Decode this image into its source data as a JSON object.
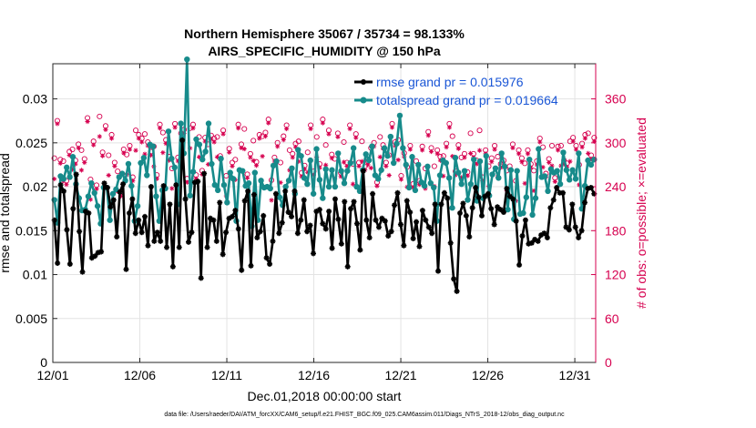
{
  "chart_data": {
    "type": "line",
    "title": [
      "Northern Hemisphere 35067 / 35734 = 98.133%",
      "AIRS_SPECIFIC_HUMIDITY @ 150 hPa"
    ],
    "xlabel": "Dec.01,2018 00:00:00 start",
    "ylabel_left": "rmse and totalspread",
    "ylabel_right": "# of obs: o=possible; ×=evaluated",
    "ylim_left": [
      0,
      0.034
    ],
    "ylim_right": [
      0,
      408
    ],
    "xlim": [
      0,
      31.2
    ],
    "x_ticks": [
      0,
      5,
      10,
      15,
      20,
      25,
      30
    ],
    "x_tick_labels": [
      "12/01",
      "12/06",
      "12/11",
      "12/16",
      "12/21",
      "12/26",
      "12/31"
    ],
    "y_ticks_left": [
      0,
      0.005,
      0.01,
      0.015,
      0.02,
      0.025,
      0.03
    ],
    "y_tick_labels_left": [
      "0",
      "0.005",
      "0.01",
      "0.015",
      "0.02",
      "0.025",
      "0.03"
    ],
    "y_ticks_right": [
      0,
      60,
      120,
      180,
      240,
      300,
      360
    ],
    "y_tick_labels_right": [
      "0",
      "60",
      "120",
      "180",
      "240",
      "300",
      "360"
    ],
    "grid": true,
    "legend_position": "top-right",
    "series": [
      {
        "name": "rmse grand pr = 0.015976",
        "color": "#000000",
        "axis": "left",
        "marker": "star",
        "values": [
          0.0162,
          0.0113,
          0.0202,
          0.0195,
          0.0151,
          0.0112,
          0.0175,
          0.0214,
          0.0149,
          0.0103,
          0.0172,
          0.017,
          0.0119,
          0.0121,
          0.0125,
          0.0126,
          0.0204,
          0.0199,
          0.0177,
          0.0185,
          0.0143,
          0.0194,
          0.0203,
          0.0106,
          0.017,
          0.0186,
          0.0147,
          0.0162,
          0.0148,
          0.0166,
          0.0133,
          0.02,
          0.0138,
          0.0148,
          0.0138,
          0.0201,
          0.0131,
          0.018,
          0.0109,
          0.0202,
          0.0131,
          0.0253,
          0.0186,
          0.0137,
          0.0148,
          0.0205,
          0.0206,
          0.0096,
          0.0215,
          0.0131,
          0.0164,
          0.0162,
          0.0138,
          0.0182,
          0.0123,
          0.0148,
          0.0164,
          0.0166,
          0.0173,
          0.0152,
          0.0105,
          0.0184,
          0.0195,
          0.011,
          0.0191,
          0.0142,
          0.0149,
          0.0167,
          0.0119,
          0.0112,
          0.0138,
          0.0192,
          0.0147,
          0.0159,
          0.0195,
          0.0171,
          0.0166,
          0.0195,
          0.0147,
          0.0162,
          0.0185,
          0.0149,
          0.0156,
          0.0124,
          0.0172,
          0.0174,
          0.0158,
          0.0152,
          0.0172,
          0.013,
          0.0186,
          0.0163,
          0.0135,
          0.0183,
          0.0109,
          0.0175,
          0.0183,
          0.0158,
          0.0128,
          0.0218,
          0.0162,
          0.0142,
          0.0192,
          0.0162,
          0.0154,
          0.0164,
          0.0161,
          0.0144,
          0.0149,
          0.0179,
          0.0193,
          0.0157,
          0.0133,
          0.0184,
          0.0171,
          0.0141,
          0.016,
          0.0132,
          0.0173,
          0.0162,
          0.0154,
          0.0147,
          0.018,
          0.0104,
          0.018,
          0.0193,
          0.0187,
          0.0136,
          0.0095,
          0.0081,
          0.017,
          0.0181,
          0.0167,
          0.0143,
          0.0176,
          0.0199,
          0.0188,
          0.0167,
          0.0189,
          0.0192,
          0.0175,
          0.0157,
          0.0177,
          0.0174,
          0.0171,
          0.0198,
          0.0189,
          0.0186,
          0.0161,
          0.0111,
          0.0144,
          0.0162,
          0.0135,
          0.0136,
          0.014,
          0.0138,
          0.0145,
          0.0147,
          0.0142,
          0.0176,
          0.0185,
          0.0199,
          0.0193,
          0.0193,
          0.0154,
          0.0151,
          0.018,
          0.0154,
          0.0142,
          0.015,
          0.0182,
          0.0198,
          0.0199,
          0.0192
        ]
      },
      {
        "name": "totalspread grand pr = 0.019664",
        "color": "#178b8b",
        "axis": "left",
        "marker": "dot",
        "values": [
          0.0185,
          0.0159,
          0.0212,
          0.0209,
          0.0222,
          0.0211,
          0.0234,
          0.0203,
          0.0187,
          0.0173,
          0.0174,
          0.0189,
          0.0204,
          0.0193,
          0.0178,
          0.0158,
          0.0199,
          0.0199,
          0.0162,
          0.0192,
          0.0197,
          0.0211,
          0.0215,
          0.0207,
          0.0226,
          0.0201,
          0.0161,
          0.0178,
          0.0227,
          0.0233,
          0.0213,
          0.0248,
          0.0246,
          0.0189,
          0.0161,
          0.0196,
          0.0198,
          0.0263,
          0.0232,
          0.0222,
          0.018,
          0.0272,
          0.0238,
          0.0345,
          0.019,
          0.0217,
          0.0254,
          0.0248,
          0.0231,
          0.024,
          0.0272,
          0.0226,
          0.0202,
          0.0196,
          0.0232,
          0.0202,
          0.0182,
          0.0216,
          0.0209,
          0.0161,
          0.0219,
          0.0218,
          0.0201,
          0.0204,
          0.0155,
          0.0216,
          0.0162,
          0.0207,
          0.0199,
          0.02,
          0.0198,
          0.0224,
          0.0229,
          0.0188,
          0.0179,
          0.02,
          0.0207,
          0.0221,
          0.0192,
          0.0242,
          0.0235,
          0.021,
          0.0203,
          0.023,
          0.0192,
          0.0243,
          0.0208,
          0.0187,
          0.022,
          0.02,
          0.0219,
          0.02,
          0.0238,
          0.0218,
          0.0204,
          0.0218,
          0.0227,
          0.0244,
          0.02,
          0.0195,
          0.0219,
          0.0237,
          0.023,
          0.0246,
          0.0213,
          0.0209,
          0.0219,
          0.0244,
          0.0235,
          0.0257,
          0.0227,
          0.0249,
          0.0281,
          0.0244,
          0.0225,
          0.0199,
          0.0234,
          0.0196,
          0.0225,
          0.0205,
          0.0201,
          0.0223,
          0.0204,
          0.0199,
          0.0161,
          0.0213,
          0.023,
          0.0227,
          0.021,
          0.0176,
          0.0233,
          0.0216,
          0.0203,
          0.0218,
          0.0185,
          0.0203,
          0.0231,
          0.0184,
          0.0229,
          0.0187,
          0.0235,
          0.019,
          0.0214,
          0.0221,
          0.021,
          0.0238,
          0.0223,
          0.0174,
          0.0219,
          0.0163,
          0.0218,
          0.0169,
          0.017,
          0.0188,
          0.0231,
          0.0168,
          0.0187,
          0.0243,
          0.0211,
          0.0212,
          0.0195,
          0.022,
          0.0216,
          0.0218,
          0.0203,
          0.0239,
          0.0219,
          0.0208,
          0.0219,
          0.0209,
          0.0238,
          0.0175,
          0.0201,
          0.023,
          0.0225,
          0.0231
        ]
      },
      {
        "name": "obs possible",
        "color": "#d6004f",
        "axis": "right",
        "marker": "circle",
        "values": [
          279,
          330,
          277,
          275,
          248,
          288,
          291,
          276,
          298,
          290,
          278,
          334,
          250,
          302,
          242,
          336,
          287,
          323,
          283,
          311,
          273,
          261,
          232,
          291,
          284,
          296,
          253,
          317,
          311,
          306,
          312,
          301,
          288,
          295,
          256,
          325,
          314,
          304,
          281,
          265,
          326,
          280,
          313,
          318,
          251,
          320,
          325,
          256,
          308,
          262,
          307,
          298,
          310,
          306,
          308,
          282,
          317,
          255,
          292,
          273,
          277,
          325,
          298,
          319,
          257,
          285,
          303,
          274,
          311,
          309,
          314,
          332,
          249,
          280,
          300,
          273,
          309,
          324,
          290,
          285,
          299,
          302,
          259,
          269,
          287,
          324,
          261,
          308,
          271,
          332,
          297,
          317,
          284,
          278,
          313,
          259,
          301,
          273,
          324,
          271,
          312,
          273,
          302,
          268,
          275,
          293,
          300,
          246,
          308,
          297,
          273,
          283,
          326,
          301,
          304,
          255,
          286,
          267,
          296,
          244,
          275,
          248,
          295,
          265,
          315,
          293,
          268,
          290,
          281,
          282,
          299,
          326,
          309,
          261,
          297,
          280,
          285,
          260,
          313,
          285,
          276,
          317,
          253,
          290,
          268,
          279,
          296,
          281,
          271,
          276,
          262,
          268,
          298,
          248,
          290,
          279,
          272,
          290,
          271,
          262,
          275,
          306,
          294,
          258,
          278,
          296,
          252,
          295,
          296,
          276,
          272,
          302,
          307,
          296,
          270,
          299,
          311,
          313,
          283,
          307
        ]
      },
      {
        "name": "obs evaluated",
        "color": "#d6004f",
        "axis": "right",
        "marker": "asterisk",
        "values": [
          273,
          326,
          272,
          270,
          243,
          283,
          286,
          271,
          293,
          285,
          273,
          329,
          245,
          297,
          237,
          331,
          282,
          318,
          278,
          306,
          268,
          256,
          227,
          286,
          279,
          291,
          248,
          312,
          306,
          301,
          307,
          296,
          283,
          290,
          251,
          320,
          309,
          299,
          276,
          260,
          321,
          275,
          308,
          313,
          246,
          315,
          320,
          251,
          303,
          257,
          302,
          293,
          305,
          301,
          303,
          277,
          312,
          250,
          287,
          268,
          272,
          320,
          293,
          314,
          252,
          280,
          298,
          269,
          306,
          304,
          309,
          327,
          244,
          275,
          295,
          268,
          304,
          319,
          285,
          280,
          294,
          297,
          254,
          264,
          282,
          319,
          256,
          303,
          266,
          327,
          292,
          312,
          279,
          273,
          308,
          254,
          296,
          268,
          319,
          266,
          307,
          268,
          297,
          263,
          270,
          288,
          295,
          241,
          303,
          292,
          268,
          278,
          321,
          296,
          299,
          250,
          281,
          262,
          291,
          239,
          270,
          243,
          290,
          260,
          310,
          288,
          263,
          285,
          276,
          277,
          294,
          321,
          304,
          256,
          292,
          275,
          280,
          255,
          308,
          280,
          271,
          312,
          248,
          285,
          263,
          274,
          291,
          276,
          266,
          271,
          257,
          263,
          293,
          243,
          285,
          274,
          267,
          285,
          266,
          257,
          270,
          301,
          289,
          253,
          273,
          291,
          247,
          290,
          291,
          271,
          267,
          297,
          302,
          291,
          265,
          294,
          306,
          308,
          278,
          302
        ]
      }
    ],
    "footnote": "data file: /Users/raeder/DAI/ATM_forcXX/CAM6_setup/f.e21.FHIST_BGC.f09_025.CAM6assim.011/Diags_NTrS_2018-12/obs_diag_output.nc"
  }
}
